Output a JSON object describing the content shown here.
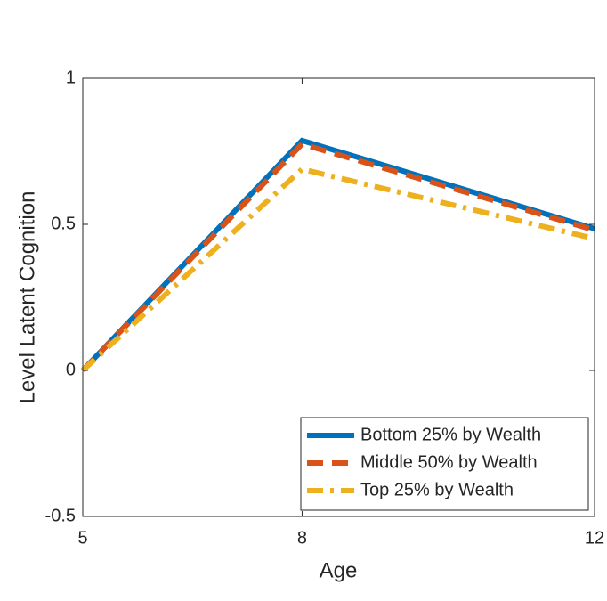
{
  "chart_data": {
    "type": "line",
    "x_label": "Age",
    "y_label": "Level Latent Cognition",
    "x": [
      5,
      8,
      12
    ],
    "xlim": [
      5,
      12
    ],
    "xticks": [
      5,
      8,
      12
    ],
    "ylim": [
      -0.5,
      1
    ],
    "yticks": [
      -0.5,
      0,
      0.5,
      1
    ],
    "legend": "southeast",
    "grid": false,
    "series": [
      {
        "name": "Bottom 25% by Wealth",
        "color": "#0072BD",
        "style": "solid",
        "values": [
          0,
          0.787,
          0.485
        ]
      },
      {
        "name": "Middle 50% by Wealth",
        "color": "#D95319",
        "style": "dashed",
        "values": [
          0,
          0.775,
          0.48
        ]
      },
      {
        "name": "Top 25% by Wealth",
        "color": "#EDB120",
        "style": "dashdot",
        "values": [
          0,
          0.689,
          0.451
        ]
      }
    ]
  }
}
